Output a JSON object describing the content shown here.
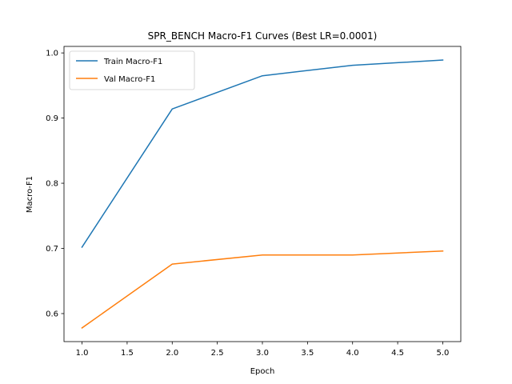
{
  "chart_data": {
    "type": "line",
    "title": "SPR_BENCH Macro-F1 Curves (Best LR=0.0001)",
    "xlabel": "Epoch",
    "ylabel": "Macro-F1",
    "x": [
      1,
      2,
      3,
      4,
      5
    ],
    "series": [
      {
        "name": "Train Macro-F1",
        "color": "#1f77b4",
        "values": [
          0.702,
          0.914,
          0.965,
          0.981,
          0.989
        ]
      },
      {
        "name": "Val Macro-F1",
        "color": "#ff7f0e",
        "values": [
          0.578,
          0.676,
          0.69,
          0.69,
          0.696
        ]
      }
    ],
    "xlim": [
      0.8,
      5.2
    ],
    "ylim": [
      0.557,
      1.01
    ],
    "xticks": [
      "1.0",
      "1.5",
      "2.0",
      "2.5",
      "3.0",
      "3.5",
      "4.0",
      "4.5",
      "5.0"
    ],
    "yticks": [
      "0.6",
      "0.7",
      "0.8",
      "0.9",
      "1.0"
    ],
    "grid": false,
    "legend": "upper-left"
  }
}
